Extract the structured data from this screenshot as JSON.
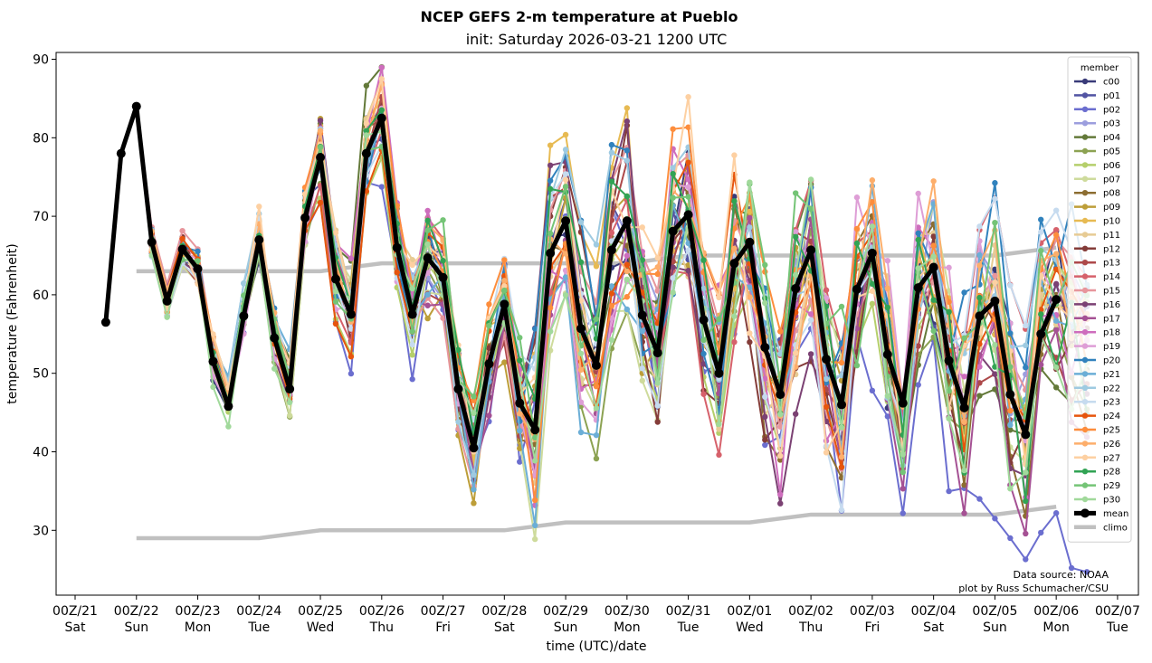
{
  "header": {
    "title": "NCEP GEFS 2-m temperature at Pueblo",
    "subtitle": "init: Saturday 2026-03-21 1200 UTC"
  },
  "chart_data": {
    "type": "line",
    "title": "NCEP GEFS 2-m temperature at Pueblo",
    "subtitle": "init: Saturday 2026-03-21 1200 UTC",
    "xlabel": "time (UTC)/date",
    "ylabel": "temperature (Fahrenheit)",
    "ylim": [
      21.5,
      91
    ],
    "yticks": [
      30,
      40,
      50,
      60,
      70,
      80,
      90
    ],
    "xlim_days": [
      0,
      17
    ],
    "x_unit": "days since 00Z/21",
    "xticks": [
      {
        "day": 0,
        "label": "00Z/21",
        "weekday": "Sat"
      },
      {
        "day": 1,
        "label": "00Z/22",
        "weekday": "Sun"
      },
      {
        "day": 2,
        "label": "00Z/23",
        "weekday": "Mon"
      },
      {
        "day": 3,
        "label": "00Z/24",
        "weekday": "Tue"
      },
      {
        "day": 4,
        "label": "00Z/25",
        "weekday": "Wed"
      },
      {
        "day": 5,
        "label": "00Z/26",
        "weekday": "Thu"
      },
      {
        "day": 6,
        "label": "00Z/27",
        "weekday": "Fri"
      },
      {
        "day": 7,
        "label": "00Z/28",
        "weekday": "Sat"
      },
      {
        "day": 8,
        "label": "00Z/29",
        "weekday": "Sun"
      },
      {
        "day": 9,
        "label": "00Z/30",
        "weekday": "Mon"
      },
      {
        "day": 10,
        "label": "00Z/31",
        "weekday": "Tue"
      },
      {
        "day": 11,
        "label": "00Z/01",
        "weekday": "Wed"
      },
      {
        "day": 12,
        "label": "00Z/02",
        "weekday": "Thu"
      },
      {
        "day": 13,
        "label": "00Z/03",
        "weekday": "Fri"
      },
      {
        "day": 14,
        "label": "00Z/04",
        "weekday": "Sat"
      },
      {
        "day": 15,
        "label": "00Z/05",
        "weekday": "Sun"
      },
      {
        "day": 16,
        "label": "00Z/06",
        "weekday": "Mon"
      },
      {
        "day": 17,
        "label": "00Z/07",
        "weekday": "Tue"
      }
    ],
    "time_start_day": 0.5,
    "time_step_hours": 6,
    "mean": {
      "name": "mean",
      "color": "#000000",
      "values": [
        56.5,
        78.0,
        84.0,
        66.7,
        59.2,
        65.8,
        63.3,
        51.5,
        45.8,
        57.3,
        67.0,
        54.5,
        48.0,
        69.8,
        77.5,
        62.0,
        57.5,
        78.0,
        82.5,
        66.0,
        57.5,
        64.7,
        62.2,
        48.0,
        40.5,
        51.2,
        58.8,
        46.2,
        42.8,
        65.3,
        69.4,
        55.7,
        51.0,
        65.7,
        69.4,
        57.4,
        52.6,
        68.1,
        70.2,
        56.8,
        50.0,
        64.0,
        66.7,
        53.3,
        47.3,
        60.8,
        65.7,
        51.8,
        46.0,
        60.7,
        65.3,
        52.4,
        46.2,
        60.9,
        63.5,
        51.6,
        45.6,
        57.3,
        59.2,
        47.3,
        42.2,
        55.0,
        59.4
      ]
    },
    "climo": {
      "name": "climo",
      "color": "#c0c0c0",
      "days": [
        1,
        2,
        3,
        4,
        5,
        6,
        7,
        8,
        9,
        10,
        11,
        12,
        13,
        14,
        15,
        16
      ],
      "high": [
        63,
        63,
        63,
        63,
        64,
        64,
        64,
        64,
        64,
        65,
        65,
        65,
        65,
        65,
        65,
        66
      ],
      "low": [
        29,
        29,
        29,
        30,
        30,
        30,
        30,
        31,
        31,
        31,
        31,
        32,
        32,
        32,
        32,
        33
      ]
    },
    "member_offsets_note": "member value = mean value + offset (ensemble spread as read from plot, approx.)",
    "members": [
      {
        "name": "c00",
        "color": "#393b79",
        "spread": [
          0.5,
          -1.0,
          0.8,
          2.0,
          -1.5,
          3.0,
          1.0,
          -2.5,
          4.0
        ]
      },
      {
        "name": "p01",
        "color": "#5254a3",
        "spread": [
          -0.5,
          0.6,
          -1.2,
          1.5,
          2.5,
          -2.0,
          2.0,
          -3.0,
          1.0
        ]
      },
      {
        "name": "p02",
        "color": "#6b6ecf",
        "spread": [
          0.2,
          -0.8,
          -6.0,
          -4.0,
          1.0,
          -3.5,
          -8.0,
          -12.0,
          -16.0
        ]
      },
      {
        "name": "p03",
        "color": "#9c9ede",
        "spread": [
          0.8,
          1.2,
          2.0,
          -1.0,
          3.5,
          4.0,
          -2.0,
          2.5,
          3.0
        ]
      },
      {
        "name": "p04",
        "color": "#637939",
        "spread": [
          -0.3,
          1.8,
          6.0,
          -1.5,
          -2.0,
          1.5,
          3.0,
          -4.0,
          -6.0
        ]
      },
      {
        "name": "p05",
        "color": "#8ca252",
        "spread": [
          0.4,
          -1.5,
          -2.5,
          0.5,
          -8.0,
          -5.0,
          2.0,
          -3.0,
          -2.0
        ]
      },
      {
        "name": "p06",
        "color": "#b5cf6b",
        "spread": [
          -0.6,
          -2.0,
          -7.5,
          -3.0,
          1.0,
          -2.5,
          -1.0,
          -2.0,
          2.0
        ]
      },
      {
        "name": "p07",
        "color": "#cedb9c",
        "spread": [
          -1.0,
          -1.5,
          2.0,
          -2.0,
          -10.0,
          -4.0,
          1.5,
          3.0,
          -1.0
        ]
      },
      {
        "name": "p08",
        "color": "#8c6d31",
        "spread": [
          0.6,
          1.0,
          1.5,
          -1.0,
          -3.0,
          2.0,
          -6.0,
          1.0,
          -5.0
        ]
      },
      {
        "name": "p09",
        "color": "#bd9e39",
        "spread": [
          -0.4,
          0.5,
          3.0,
          -5.0,
          2.0,
          -3.0,
          1.0,
          -1.5,
          3.0
        ]
      },
      {
        "name": "p10",
        "color": "#e7ba52",
        "spread": [
          0.3,
          0.8,
          3.5,
          1.5,
          12.0,
          2.0,
          -1.0,
          2.0,
          1.0
        ]
      },
      {
        "name": "p11",
        "color": "#e7cb94",
        "spread": [
          -0.2,
          1.5,
          4.0,
          2.5,
          -4.0,
          -3.0,
          -5.0,
          4.0,
          2.0
        ]
      },
      {
        "name": "p12",
        "color": "#843c39",
        "spread": [
          0.5,
          1.0,
          -1.0,
          0.5,
          8.0,
          -4.0,
          -9.0,
          -2.0,
          -3.0
        ]
      },
      {
        "name": "p13",
        "color": "#ad494a",
        "spread": [
          -0.7,
          1.2,
          0.5,
          -1.5,
          3.0,
          1.0,
          2.0,
          -3.0,
          -4.0
        ]
      },
      {
        "name": "p14",
        "color": "#d6616b",
        "spread": [
          0.9,
          -0.5,
          -1.5,
          2.0,
          -2.0,
          -5.0,
          3.0,
          4.0,
          8.0
        ]
      },
      {
        "name": "p15",
        "color": "#e7969c",
        "spread": [
          1.2,
          0.8,
          1.5,
          -2.0,
          5.0,
          3.0,
          -3.0,
          2.5,
          3.0
        ]
      },
      {
        "name": "p16",
        "color": "#7b4173",
        "spread": [
          -0.8,
          -0.5,
          2.5,
          -1.0,
          9.0,
          -2.0,
          -10.0,
          -1.0,
          -4.0
        ]
      },
      {
        "name": "p17",
        "color": "#a55194",
        "spread": [
          0.7,
          1.5,
          1.0,
          -3.0,
          -4.0,
          2.0,
          -2.0,
          -5.0,
          -8.0
        ]
      },
      {
        "name": "p18",
        "color": "#ce6dbd",
        "spread": [
          -0.3,
          1.0,
          5.0,
          3.0,
          -6.0,
          6.0,
          -7.0,
          3.0,
          -2.0
        ]
      },
      {
        "name": "p19",
        "color": "#de9ed6",
        "spread": [
          0.4,
          -1.0,
          -1.5,
          1.0,
          -8.0,
          5.0,
          2.5,
          6.0,
          4.0
        ]
      },
      {
        "name": "p20",
        "color": "#3182bd",
        "spread": [
          1.0,
          2.0,
          -1.0,
          1.5,
          10.0,
          -3.0,
          3.0,
          2.0,
          10.0
        ]
      },
      {
        "name": "p21",
        "color": "#6baed6",
        "spread": [
          -0.5,
          3.0,
          0.5,
          -2.0,
          -9.0,
          1.5,
          -2.0,
          3.0,
          2.0
        ]
      },
      {
        "name": "p22",
        "color": "#9ecae1",
        "spread": [
          0.6,
          2.5,
          2.0,
          -1.0,
          11.0,
          4.0,
          1.0,
          -2.0,
          6.0
        ]
      },
      {
        "name": "p23",
        "color": "#c6dbef",
        "spread": [
          -0.9,
          1.0,
          -1.0,
          2.5,
          4.0,
          -2.0,
          -12.0,
          3.0,
          8.0
        ]
      },
      {
        "name": "p24",
        "color": "#e6550d",
        "spread": [
          0.2,
          0.5,
          -3.5,
          1.0,
          -1.0,
          7.0,
          -8.0,
          6.0,
          -2.0
        ]
      },
      {
        "name": "p25",
        "color": "#fd8d3c",
        "spread": [
          -0.4,
          1.8,
          2.5,
          4.0,
          -5.0,
          8.0,
          4.0,
          2.0,
          3.0
        ]
      },
      {
        "name": "p26",
        "color": "#fdae6b",
        "spread": [
          0.8,
          1.5,
          1.5,
          2.5,
          -2.0,
          6.0,
          -4.0,
          5.0,
          4.0
        ]
      },
      {
        "name": "p27",
        "color": "#fdd0a2",
        "spread": [
          -0.6,
          2.5,
          3.5,
          3.0,
          3.0,
          10.0,
          -6.0,
          -1.0,
          2.0
        ]
      },
      {
        "name": "p28",
        "color": "#31a354",
        "spread": [
          0.3,
          0.9,
          2.0,
          3.5,
          6.0,
          4.0,
          2.0,
          1.0,
          -3.0
        ]
      },
      {
        "name": "p29",
        "color": "#74c476",
        "spread": [
          -0.2,
          1.2,
          -1.0,
          4.5,
          2.0,
          1.5,
          7.0,
          -4.0,
          5.0
        ]
      },
      {
        "name": "p30",
        "color": "#a1d99b",
        "spread": [
          -1.2,
          -2.0,
          0.5,
          1.0,
          -7.0,
          -3.0,
          3.0,
          -2.0,
          -6.0
        ]
      }
    ],
    "member_tail_note": "members continue two steps past the mean (to 12Z/06)",
    "p02_tail": [
      34.0,
      31.5,
      29.0,
      26.3,
      29.7,
      32.2,
      25.2,
      24.7
    ],
    "annotations": [
      "Data source: NOAA",
      "plot by Russ Schumacher/CSU"
    ],
    "legend": {
      "title": "member",
      "placement": "top-right"
    },
    "grid": false
  },
  "footer": {
    "source": "Data source: NOAA",
    "credit": "plot by Russ Schumacher/CSU"
  }
}
